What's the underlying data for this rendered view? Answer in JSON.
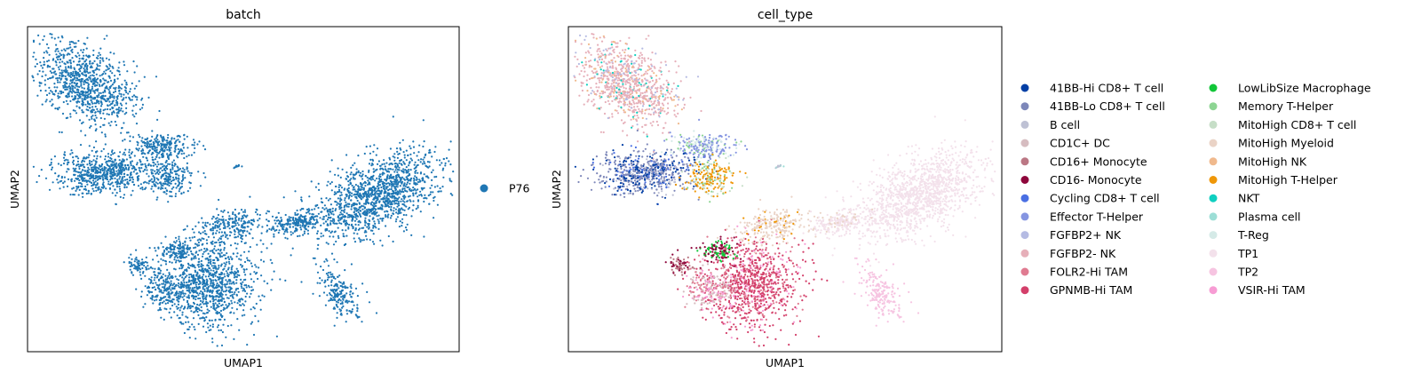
{
  "chart_data": [
    {
      "type": "scatter",
      "title": "batch",
      "xlabel": "UMAP1",
      "ylabel": "UMAP2",
      "legend_position": "right",
      "series": [
        {
          "name": "P76",
          "color": "#1f77b4"
        }
      ]
    },
    {
      "type": "scatter",
      "title": "cell_type",
      "xlabel": "UMAP1",
      "ylabel": "UMAP2",
      "legend_position": "right",
      "series": [
        {
          "name": "41BB-Hi CD8+ T cell",
          "color": "#023fa5"
        },
        {
          "name": "41BB-Lo CD8+ T cell",
          "color": "#7d87b9"
        },
        {
          "name": "B cell",
          "color": "#bec1d4"
        },
        {
          "name": "CD1C+ DC",
          "color": "#d6bcc0"
        },
        {
          "name": "CD16+ Monocyte",
          "color": "#bb7784"
        },
        {
          "name": "CD16- Monocyte",
          "color": "#8e063b"
        },
        {
          "name": "Cycling CD8+ T cell",
          "color": "#4a6fe3"
        },
        {
          "name": "Effector T-Helper",
          "color": "#8595e1"
        },
        {
          "name": "FGFBP2+ NK",
          "color": "#b5bbe3"
        },
        {
          "name": "FGFBP2- NK",
          "color": "#e6afb9"
        },
        {
          "name": "FOLR2-Hi TAM",
          "color": "#e07b91"
        },
        {
          "name": "GPNMB-Hi TAM",
          "color": "#d33f6a"
        },
        {
          "name": "LowLibSize Macrophage",
          "color": "#11c638"
        },
        {
          "name": "Memory T-Helper",
          "color": "#8dd593"
        },
        {
          "name": "MitoHigh CD8+ T cell",
          "color": "#c6dec7"
        },
        {
          "name": "MitoHigh Myeloid",
          "color": "#ead3c6"
        },
        {
          "name": "MitoHigh NK",
          "color": "#f0b98d"
        },
        {
          "name": "MitoHigh T-Helper",
          "color": "#ef9708"
        },
        {
          "name": "NKT",
          "color": "#0fcfc0"
        },
        {
          "name": "Plasma cell",
          "color": "#9cded6"
        },
        {
          "name": "T-Reg",
          "color": "#d5eae7"
        },
        {
          "name": "TP1",
          "color": "#f3e1eb"
        },
        {
          "name": "TP2",
          "color": "#f6c4e1"
        },
        {
          "name": "VSIR-Hi TAM",
          "color": "#f79cd4"
        }
      ]
    }
  ]
}
